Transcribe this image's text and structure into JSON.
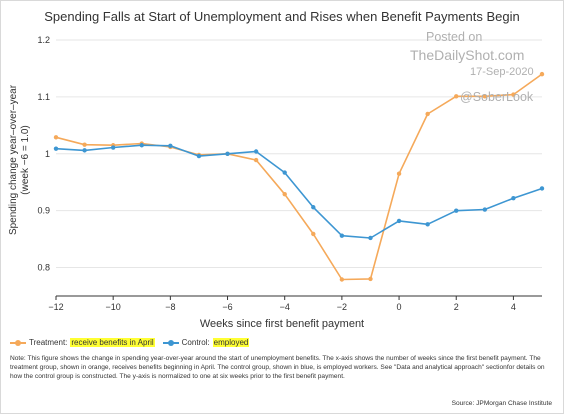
{
  "title": "Spending Falls at Start of Unemployment and Rises when Benefit Payments Begin",
  "watermark": {
    "line1": "Posted on",
    "line2": "TheDailyShot.com",
    "date": "17-Sep-2020",
    "handle": "@SoberLook"
  },
  "legend": {
    "treatment_prefix": "Treatment: ",
    "treatment_highlight": "receive benefits in April",
    "control_prefix": "Control: ",
    "control_highlight": "employed"
  },
  "note": "Note: This figure shows the change in spending year-over-year around the start of unemployment benefits. The x-axis shows the number of weeks since the first benefit payment. The treatment group, shown in orange, receives benefits beginning in April. The control group, shown in blue, is employed workers. See \"Data and analytical approach\" sectionfor details on how the control group is constructed. The y-axis is normalized to one at six weeks prior to the first benefit payment.",
  "source": "Source: JPMorgan Chase Institute",
  "chart_data": {
    "type": "line",
    "title": "Spending Falls at Start of Unemployment and Rises when Benefit Payments Begin",
    "xlabel": "Weeks since first benefit payment",
    "ylabel_line1": "Spending change year–over–year",
    "ylabel_line2": "(week −6 = 1.0)",
    "xlim": [
      -12,
      5
    ],
    "ylim": [
      0.75,
      1.2
    ],
    "xticks": [
      -12,
      -10,
      -8,
      -6,
      -4,
      -2,
      0,
      2,
      4
    ],
    "xtick_labels": [
      "−12",
      "−10",
      "−8",
      "−6",
      "−4",
      "−2",
      "0",
      "2",
      "4"
    ],
    "yticks": [
      0.8,
      0.9,
      1,
      1.1,
      1.2
    ],
    "ytick_labels": [
      "0.8",
      "0.9",
      "1",
      "1.1",
      "1.2"
    ],
    "grid": "horizontal",
    "legend_position": "bottom-left",
    "x": [
      -12,
      -11,
      -10,
      -9,
      -8,
      -7,
      -6,
      -5,
      -4,
      -3,
      -2,
      -1,
      0,
      1,
      2,
      3,
      4,
      5
    ],
    "series": [
      {
        "name": "Treatment: receive benefits in April",
        "color": "#f5a95a",
        "values": [
          1.029,
          1.016,
          1.015,
          1.018,
          1.012,
          0.998,
          1.0,
          0.989,
          0.929,
          0.859,
          0.779,
          0.78,
          0.965,
          1.07,
          1.101,
          1.101,
          1.104,
          1.14
        ]
      },
      {
        "name": "Control: employed",
        "color": "#3d96d2",
        "values": [
          1.009,
          1.006,
          1.011,
          1.015,
          1.014,
          0.996,
          1.0,
          1.004,
          0.967,
          0.906,
          0.856,
          0.852,
          0.882,
          0.876,
          0.9,
          0.902,
          0.922,
          0.939
        ]
      }
    ]
  }
}
